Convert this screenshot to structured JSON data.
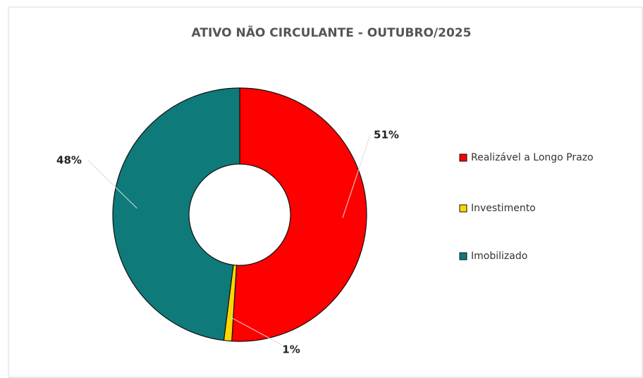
{
  "chart_data": {
    "type": "donut",
    "title": "ATIVO NÃO CIRCULANTE - OUTUBRO/2025",
    "categories": [
      "Realizável a Longo Prazo",
      "Investimento",
      "Imobilizado"
    ],
    "values": [
      51,
      1,
      48
    ],
    "value_labels": [
      "51%",
      "1%",
      "48%"
    ],
    "colors": [
      "#ff0000",
      "#ffd700",
      "#0e7a7a"
    ],
    "legend": "right"
  }
}
